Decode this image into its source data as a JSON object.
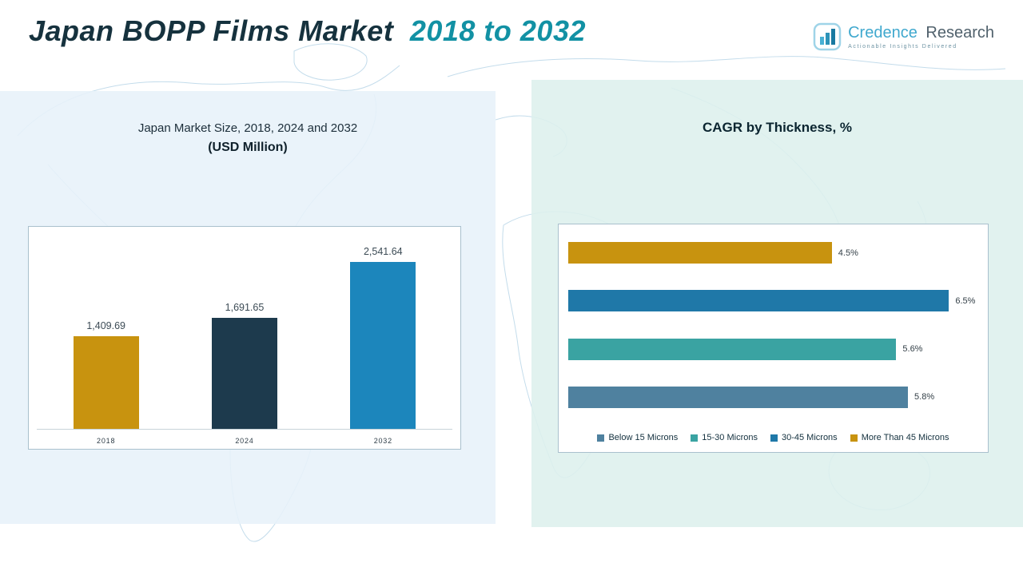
{
  "header": {
    "title_main": "Japan BOPP Films Market",
    "title_accent": "2018 to 2032",
    "logo": {
      "brand_first": "Credence",
      "brand_second": "Research",
      "tagline": "Actionable Insights Delivered"
    }
  },
  "left_panel": {
    "title_line1": "Japan Market Size, 2018, 2024 and 2032",
    "title_line2": "(USD Million)"
  },
  "right_panel": {
    "title": "CAGR by Thickness, %"
  },
  "colors": {
    "title_dark": "#16323E",
    "title_accent": "#1291A4",
    "left_panel_bg": "#E7F1F9",
    "right_panel_bg": "#DDF0ED",
    "gold": "#C8930F",
    "navy": "#1D3A4D",
    "blue": "#1C86BC",
    "teal": "#3AA3A2",
    "steel": "#4F819F"
  },
  "chart_data": [
    {
      "type": "bar",
      "orientation": "vertical",
      "title": "Japan Market Size, 2018, 2024 and 2032 (USD Million)",
      "categories": [
        "2018",
        "2024",
        "2032"
      ],
      "values": [
        1409.69,
        1691.65,
        2541.64
      ],
      "value_labels": [
        "1,409.69",
        "1,691.65",
        "2,541.64"
      ],
      "bar_colors": [
        "#C8930F",
        "#1D3A4D",
        "#1C86BC"
      ],
      "xlabel": "",
      "ylabel": "",
      "ylim": [
        0,
        2800
      ],
      "grid": false,
      "legend_position": "none"
    },
    {
      "type": "bar",
      "orientation": "horizontal",
      "title": "CAGR by Thickness, %",
      "categories": [
        "More Than 45 Microns",
        "30-45 Microns",
        "15-30 Microns",
        "Below 15 Microns"
      ],
      "values": [
        4.5,
        6.5,
        5.6,
        5.8
      ],
      "value_labels": [
        "4.5%",
        "6.5%",
        "5.6%",
        "5.8%"
      ],
      "bar_colors": [
        "#C8930F",
        "#1F78A8",
        "#3AA3A2",
        "#4F819F"
      ],
      "xlabel": "",
      "ylabel": "",
      "xlim": [
        0,
        7
      ],
      "grid": false,
      "legend_position": "bottom",
      "legend": [
        {
          "label": "Below 15 Microns",
          "color": "#4F819F"
        },
        {
          "label": "15-30 Microns",
          "color": "#3AA3A2"
        },
        {
          "label": "30-45 Microns",
          "color": "#1F78A8"
        },
        {
          "label": "More Than 45 Microns",
          "color": "#C8930F"
        }
      ]
    }
  ]
}
